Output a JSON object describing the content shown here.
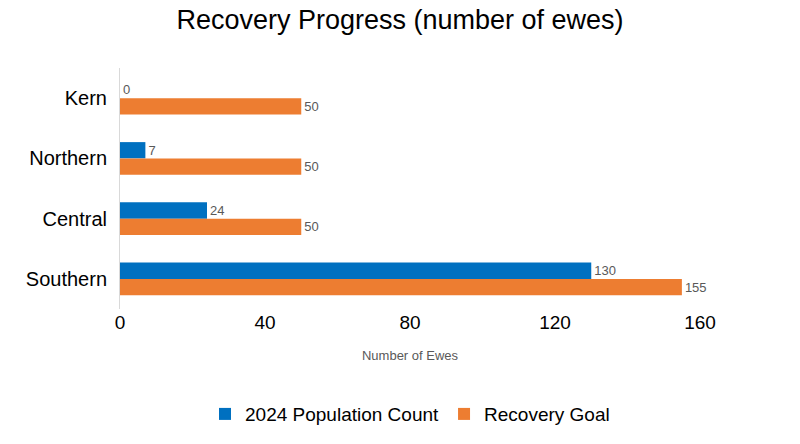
{
  "chart_data": {
    "type": "bar",
    "title": "Recovery Progress (number of ewes)",
    "x_label": "Number of Ewes",
    "orientation": "horizontal",
    "categories": [
      "Kern",
      "Northern",
      "Central",
      "Southern"
    ],
    "series": [
      {
        "name": "2024 Population Count",
        "color": "#0070c0",
        "values": [
          0,
          7,
          24,
          130
        ]
      },
      {
        "name": "Recovery Goal",
        "color": "#ed7d31",
        "values": [
          50,
          50,
          50,
          155
        ]
      }
    ],
    "xlim": [
      0,
      160
    ],
    "xticks": [
      0,
      40,
      80,
      120,
      160
    ],
    "grid": false,
    "legend": "bottom",
    "data_labels": true
  }
}
